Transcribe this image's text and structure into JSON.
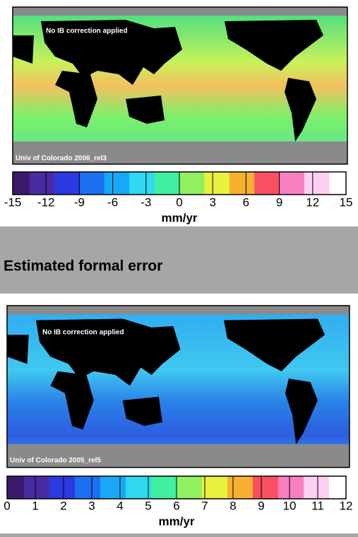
{
  "panels": [
    {
      "annotation_top": "No IB correction applied",
      "annotation_bottom": "Univ of Colorado 2006_rel3",
      "colorbar": {
        "ticks": [
          -15,
          -12,
          -9,
          -6,
          -3,
          0,
          3,
          6,
          9,
          12,
          15
        ],
        "unit": "mm/yr"
      }
    },
    {
      "annotation_top": "No IB correction applied",
      "annotation_bottom": "Univ of Colorado 2005_rel5",
      "colorbar": {
        "ticks": [
          0,
          1,
          2,
          3,
          4,
          5,
          6,
          7,
          8,
          9,
          10,
          11,
          12
        ],
        "unit": "mm/yr"
      }
    }
  ],
  "heading": "Estimated formal error"
}
